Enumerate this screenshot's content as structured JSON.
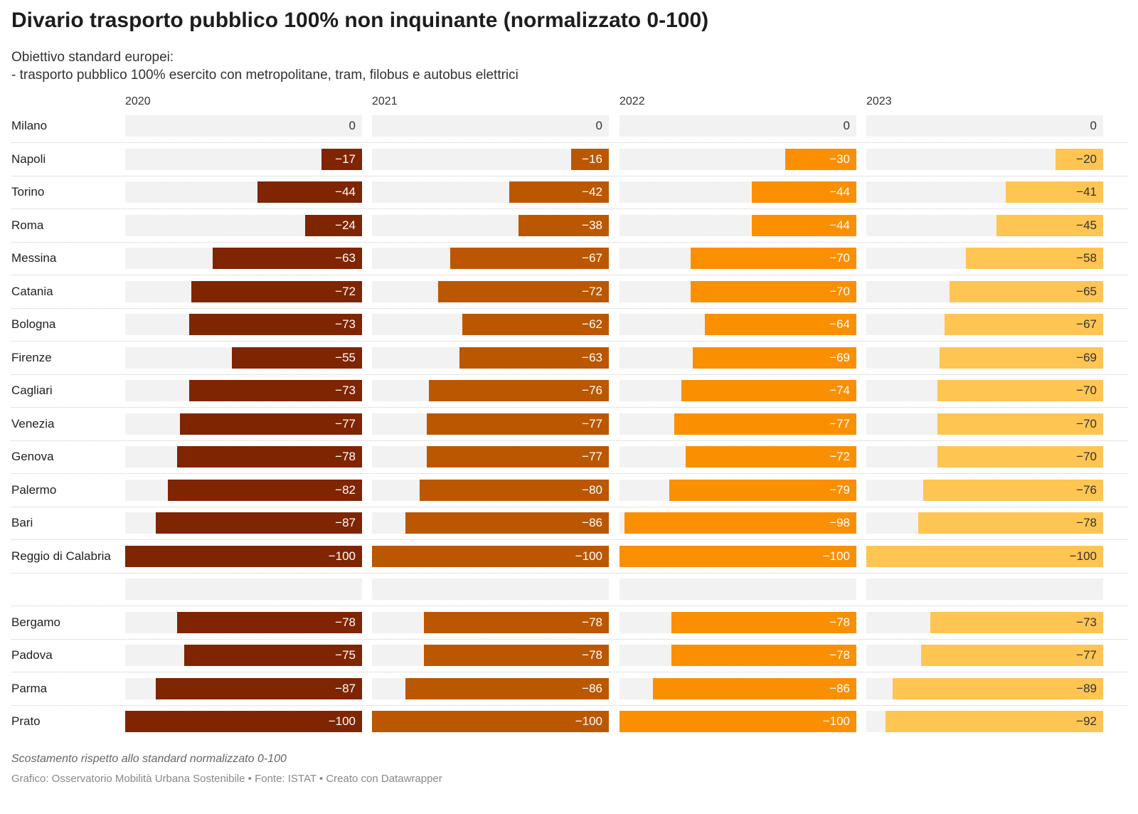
{
  "header": {
    "title": "Divario trasporto pubblico 100% non inquinante (normalizzato 0-100)",
    "subtitle_line1": "Obiettivo standard europei:",
    "subtitle_line2": "- trasporto pubblico 100% esercito con metropolitane, tram, filobus e autobus elettrici"
  },
  "footer": {
    "notes": "Scostamento rispetto allo standard normalizzato 0-100",
    "source": "Grafico: Osservatorio Mobilità Urbana Sostenibile • Fonte: ISTAT • Creato con Datawrapper"
  },
  "colors": {
    "track": "#f2f2f2",
    "series": [
      "#7f2502",
      "#bb5701",
      "#fb8f02",
      "#fec552"
    ],
    "label_text": [
      "#ffffff",
      "#ffffff",
      "#ffffff",
      "#333333"
    ]
  },
  "chart_data": {
    "type": "bar",
    "orientation": "horizontal",
    "layout": "small-multiples",
    "xlim": [
      -100,
      0
    ],
    "grid": false,
    "series": [
      {
        "name": "2020",
        "values": [
          0,
          -17,
          -44,
          -24,
          -63,
          -72,
          -73,
          -55,
          -73,
          -77,
          -78,
          -82,
          -87,
          -100,
          null,
          -78,
          -75,
          -87,
          -100
        ]
      },
      {
        "name": "2021",
        "values": [
          0,
          -16,
          -42,
          -38,
          -67,
          -72,
          -62,
          -63,
          -76,
          -77,
          -77,
          -80,
          -86,
          -100,
          null,
          -78,
          -78,
          -86,
          -100
        ]
      },
      {
        "name": "2022",
        "values": [
          0,
          -30,
          -44,
          -44,
          -70,
          -70,
          -64,
          -69,
          -74,
          -77,
          -72,
          -79,
          -98,
          -100,
          null,
          -78,
          -78,
          -86,
          -100
        ]
      },
      {
        "name": "2023",
        "values": [
          0,
          -20,
          -41,
          -45,
          -58,
          -65,
          -67,
          -69,
          -70,
          -70,
          -70,
          -76,
          -78,
          -100,
          null,
          -73,
          -77,
          -89,
          -92
        ]
      }
    ],
    "categories": [
      "Milano",
      "Napoli",
      "Torino",
      "Roma",
      "Messina",
      "Catania",
      "Bologna",
      "Firenze",
      "Cagliari",
      "Venezia",
      "Genova",
      "Palermo",
      "Bari",
      "Reggio di Calabria",
      "",
      "Bergamo",
      "Padova",
      "Parma",
      "Prato"
    ]
  }
}
